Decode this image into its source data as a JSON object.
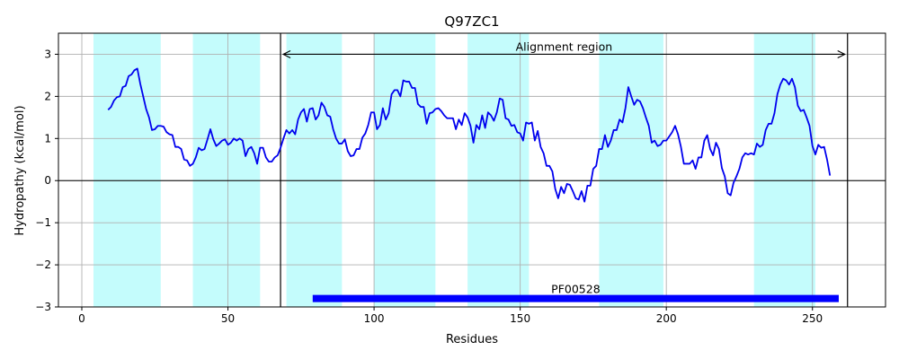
{
  "chart_data": {
    "type": "line",
    "title": "Q97ZC1",
    "xlabel": "Residues",
    "ylabel": "Hydropathy (kcal/mol)",
    "xlim": [
      -8,
      275
    ],
    "ylim": [
      -3,
      3.5
    ],
    "xticks": [
      0,
      50,
      100,
      150,
      200,
      250
    ],
    "yticks": [
      -3,
      -2,
      -1,
      0,
      1,
      2,
      3
    ],
    "grid": true,
    "colors": {
      "line": "#0000ee",
      "band": "#c4fcfc",
      "pfam_bar": "#0000ff",
      "frame": "#000000",
      "grid": "#b0b0b0"
    },
    "highlight_bands": [
      [
        4,
        27
      ],
      [
        38,
        61
      ],
      [
        70,
        89
      ],
      [
        100,
        121
      ],
      [
        132,
        153
      ],
      [
        177,
        199
      ],
      [
        230,
        251
      ]
    ],
    "alignment_region": {
      "label": "Alignment region",
      "start": 68,
      "end": 262,
      "y": 3.0
    },
    "pfam": {
      "label": "PF00528",
      "start": 79,
      "end": 259,
      "y": -2.8
    },
    "series": [
      {
        "values": [
          [
            9,
            1.68
          ],
          [
            10,
            1.75
          ],
          [
            11,
            1.9
          ],
          [
            12,
            1.98
          ],
          [
            13,
            2.0
          ],
          [
            14,
            2.22
          ],
          [
            15,
            2.25
          ],
          [
            16,
            2.48
          ],
          [
            17,
            2.52
          ],
          [
            18,
            2.62
          ],
          [
            19,
            2.66
          ],
          [
            20,
            2.3
          ],
          [
            21,
            2.0
          ],
          [
            22,
            1.7
          ],
          [
            23,
            1.5
          ],
          [
            24,
            1.2
          ],
          [
            25,
            1.22
          ],
          [
            26,
            1.3
          ],
          [
            27,
            1.3
          ],
          [
            28,
            1.28
          ],
          [
            29,
            1.15
          ],
          [
            30,
            1.1
          ],
          [
            31,
            1.08
          ],
          [
            32,
            0.8
          ],
          [
            33,
            0.8
          ],
          [
            34,
            0.75
          ],
          [
            35,
            0.5
          ],
          [
            36,
            0.48
          ],
          [
            37,
            0.35
          ],
          [
            38,
            0.4
          ],
          [
            39,
            0.55
          ],
          [
            40,
            0.78
          ],
          [
            41,
            0.72
          ],
          [
            42,
            0.75
          ],
          [
            43,
            0.98
          ],
          [
            44,
            1.22
          ],
          [
            45,
            0.98
          ],
          [
            46,
            0.82
          ],
          [
            47,
            0.88
          ],
          [
            48,
            0.95
          ],
          [
            49,
            0.98
          ],
          [
            50,
            0.85
          ],
          [
            51,
            0.9
          ],
          [
            52,
            1.0
          ],
          [
            53,
            0.95
          ],
          [
            54,
            1.0
          ],
          [
            55,
            0.95
          ],
          [
            56,
            0.58
          ],
          [
            57,
            0.75
          ],
          [
            58,
            0.8
          ],
          [
            59,
            0.65
          ],
          [
            60,
            0.4
          ],
          [
            61,
            0.78
          ],
          [
            62,
            0.78
          ],
          [
            63,
            0.55
          ],
          [
            64,
            0.45
          ],
          [
            65,
            0.45
          ],
          [
            66,
            0.55
          ],
          [
            67,
            0.6
          ],
          [
            68,
            0.78
          ],
          [
            69,
            1.0
          ],
          [
            70,
            1.2
          ],
          [
            71,
            1.12
          ],
          [
            72,
            1.2
          ],
          [
            73,
            1.1
          ],
          [
            74,
            1.45
          ],
          [
            75,
            1.62
          ],
          [
            76,
            1.7
          ],
          [
            77,
            1.4
          ],
          [
            78,
            1.7
          ],
          [
            79,
            1.72
          ],
          [
            80,
            1.45
          ],
          [
            81,
            1.55
          ],
          [
            82,
            1.85
          ],
          [
            83,
            1.75
          ],
          [
            84,
            1.55
          ],
          [
            85,
            1.52
          ],
          [
            86,
            1.22
          ],
          [
            87,
            1.0
          ],
          [
            88,
            0.88
          ],
          [
            89,
            0.88
          ],
          [
            90,
            0.98
          ],
          [
            91,
            0.7
          ],
          [
            92,
            0.58
          ],
          [
            93,
            0.6
          ],
          [
            94,
            0.75
          ],
          [
            95,
            0.75
          ],
          [
            96,
            1.02
          ],
          [
            97,
            1.12
          ],
          [
            98,
            1.32
          ],
          [
            99,
            1.62
          ],
          [
            100,
            1.62
          ],
          [
            101,
            1.22
          ],
          [
            102,
            1.32
          ],
          [
            103,
            1.72
          ],
          [
            104,
            1.45
          ],
          [
            105,
            1.6
          ],
          [
            106,
            2.05
          ],
          [
            107,
            2.15
          ],
          [
            108,
            2.15
          ],
          [
            109,
            2.0
          ],
          [
            110,
            2.38
          ],
          [
            111,
            2.35
          ],
          [
            112,
            2.35
          ],
          [
            113,
            2.2
          ],
          [
            114,
            2.2
          ],
          [
            115,
            1.82
          ],
          [
            116,
            1.75
          ],
          [
            117,
            1.75
          ],
          [
            118,
            1.35
          ],
          [
            119,
            1.6
          ],
          [
            120,
            1.62
          ],
          [
            121,
            1.7
          ],
          [
            122,
            1.72
          ],
          [
            123,
            1.65
          ],
          [
            124,
            1.55
          ],
          [
            125,
            1.48
          ],
          [
            126,
            1.48
          ],
          [
            127,
            1.48
          ],
          [
            128,
            1.22
          ],
          [
            129,
            1.45
          ],
          [
            130,
            1.32
          ],
          [
            131,
            1.6
          ],
          [
            132,
            1.5
          ],
          [
            133,
            1.3
          ],
          [
            134,
            0.9
          ],
          [
            135,
            1.32
          ],
          [
            136,
            1.22
          ],
          [
            137,
            1.55
          ],
          [
            138,
            1.25
          ],
          [
            139,
            1.62
          ],
          [
            140,
            1.55
          ],
          [
            141,
            1.42
          ],
          [
            142,
            1.62
          ],
          [
            143,
            1.95
          ],
          [
            144,
            1.92
          ],
          [
            145,
            1.48
          ],
          [
            146,
            1.45
          ],
          [
            147,
            1.3
          ],
          [
            148,
            1.32
          ],
          [
            149,
            1.15
          ],
          [
            150,
            1.12
          ],
          [
            151,
            0.95
          ],
          [
            152,
            1.38
          ],
          [
            153,
            1.35
          ],
          [
            154,
            1.38
          ],
          [
            155,
            0.95
          ],
          [
            156,
            1.18
          ],
          [
            157,
            0.8
          ],
          [
            158,
            0.65
          ],
          [
            159,
            0.35
          ],
          [
            160,
            0.35
          ],
          [
            161,
            0.22
          ],
          [
            162,
            -0.2
          ],
          [
            163,
            -0.42
          ],
          [
            164,
            -0.15
          ],
          [
            165,
            -0.3
          ],
          [
            166,
            -0.08
          ],
          [
            167,
            -0.1
          ],
          [
            168,
            -0.25
          ],
          [
            169,
            -0.42
          ],
          [
            170,
            -0.45
          ],
          [
            171,
            -0.25
          ],
          [
            172,
            -0.5
          ],
          [
            173,
            -0.12
          ],
          [
            174,
            -0.12
          ],
          [
            175,
            0.28
          ],
          [
            176,
            0.35
          ],
          [
            177,
            0.75
          ],
          [
            178,
            0.75
          ],
          [
            179,
            1.08
          ],
          [
            180,
            0.8
          ],
          [
            181,
            0.95
          ],
          [
            182,
            1.2
          ],
          [
            183,
            1.2
          ],
          [
            184,
            1.45
          ],
          [
            185,
            1.38
          ],
          [
            186,
            1.72
          ],
          [
            187,
            2.22
          ],
          [
            188,
            2.0
          ],
          [
            189,
            1.8
          ],
          [
            190,
            1.92
          ],
          [
            191,
            1.88
          ],
          [
            192,
            1.72
          ],
          [
            193,
            1.5
          ],
          [
            194,
            1.3
          ],
          [
            195,
            0.9
          ],
          [
            196,
            0.95
          ],
          [
            197,
            0.82
          ],
          [
            198,
            0.85
          ],
          [
            199,
            0.95
          ],
          [
            200,
            0.95
          ],
          [
            201,
            1.05
          ],
          [
            202,
            1.15
          ],
          [
            203,
            1.3
          ],
          [
            204,
            1.1
          ],
          [
            205,
            0.8
          ],
          [
            206,
            0.4
          ],
          [
            207,
            0.4
          ],
          [
            208,
            0.4
          ],
          [
            209,
            0.48
          ],
          [
            210,
            0.28
          ],
          [
            211,
            0.55
          ],
          [
            212,
            0.55
          ],
          [
            213,
            0.95
          ],
          [
            214,
            1.08
          ],
          [
            215,
            0.75
          ],
          [
            216,
            0.6
          ],
          [
            217,
            0.9
          ],
          [
            218,
            0.75
          ],
          [
            219,
            0.3
          ],
          [
            220,
            0.1
          ],
          [
            221,
            -0.3
          ],
          [
            222,
            -0.35
          ],
          [
            223,
            -0.05
          ],
          [
            224,
            0.1
          ],
          [
            225,
            0.28
          ],
          [
            226,
            0.55
          ],
          [
            227,
            0.65
          ],
          [
            228,
            0.62
          ],
          [
            229,
            0.65
          ],
          [
            230,
            0.62
          ],
          [
            231,
            0.88
          ],
          [
            232,
            0.8
          ],
          [
            233,
            0.85
          ],
          [
            234,
            1.2
          ],
          [
            235,
            1.35
          ],
          [
            236,
            1.35
          ],
          [
            237,
            1.6
          ],
          [
            238,
            2.05
          ],
          [
            239,
            2.28
          ],
          [
            240,
            2.42
          ],
          [
            241,
            2.38
          ],
          [
            242,
            2.28
          ],
          [
            243,
            2.42
          ],
          [
            244,
            2.22
          ],
          [
            245,
            1.78
          ],
          [
            246,
            1.65
          ],
          [
            247,
            1.68
          ],
          [
            248,
            1.5
          ],
          [
            249,
            1.3
          ],
          [
            250,
            0.82
          ],
          [
            251,
            0.62
          ],
          [
            252,
            0.85
          ],
          [
            253,
            0.78
          ],
          [
            254,
            0.8
          ],
          [
            255,
            0.5
          ],
          [
            256,
            0.12
          ]
        ]
      }
    ]
  }
}
